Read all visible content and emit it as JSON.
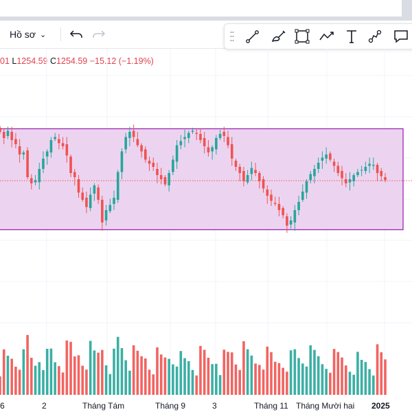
{
  "toolbar": {
    "profile_label": "Hồ sơ",
    "undo_icon": "undo-icon",
    "redo_icon": "redo-icon"
  },
  "drawing_tools": [
    {
      "name": "trend-line-icon"
    },
    {
      "name": "brush-icon"
    },
    {
      "name": "rectangle-icon"
    },
    {
      "name": "path-icon"
    },
    {
      "name": "text-icon"
    },
    {
      "name": "measure-icon"
    },
    {
      "name": "comment-icon"
    }
  ],
  "legend": {
    "partial_prefix": "01",
    "low_label": "L",
    "low_value": "1254.59",
    "close_label": "C",
    "close_value": "1254.59",
    "change": "−15.12 (−1.19%)"
  },
  "colors": {
    "up": "#26a69a",
    "down": "#ef5350",
    "rectangle_fill": "#e9cdef",
    "rectangle_border": "#9c27b0",
    "price_line": "#ef5350",
    "grid": "#f0f3fa"
  },
  "chart_data": {
    "type": "candlestick",
    "price_range": [
      1150,
      1330
    ],
    "rectangle": {
      "price_top": 1305,
      "price_bottom": 1207
    },
    "last_price": 1254.59,
    "x_axis_labels": [
      "6",
      "2",
      "Tháng Tám",
      "Tháng 9",
      "3",
      "Tháng 11",
      "Tháng Mười hai",
      "2025"
    ],
    "close_series": [
      1302,
      1296,
      1303,
      1294,
      1290,
      1280,
      1282,
      1258,
      1252,
      1255,
      1266,
      1276,
      1283,
      1294,
      1297,
      1291,
      1288,
      1279,
      1262,
      1258,
      1243,
      1236,
      1229,
      1241,
      1250,
      1236,
      1214,
      1226,
      1231,
      1238,
      1263,
      1283,
      1297,
      1302,
      1297,
      1289,
      1283,
      1275,
      1271,
      1268,
      1260,
      1256,
      1251,
      1262,
      1275,
      1289,
      1293,
      1297,
      1301,
      1303,
      1300,
      1294,
      1288,
      1282,
      1287,
      1296,
      1300,
      1298,
      1289,
      1276,
      1268,
      1262,
      1254,
      1260,
      1267,
      1262,
      1254,
      1247,
      1240,
      1235,
      1232,
      1226,
      1221,
      1211,
      1216,
      1226,
      1234,
      1244,
      1254,
      1261,
      1266,
      1272,
      1277,
      1280,
      1275,
      1269,
      1262,
      1257,
      1252,
      1256,
      1260,
      1263,
      1265,
      1268,
      1271,
      1270,
      1262,
      1259,
      1255
    ]
  }
}
